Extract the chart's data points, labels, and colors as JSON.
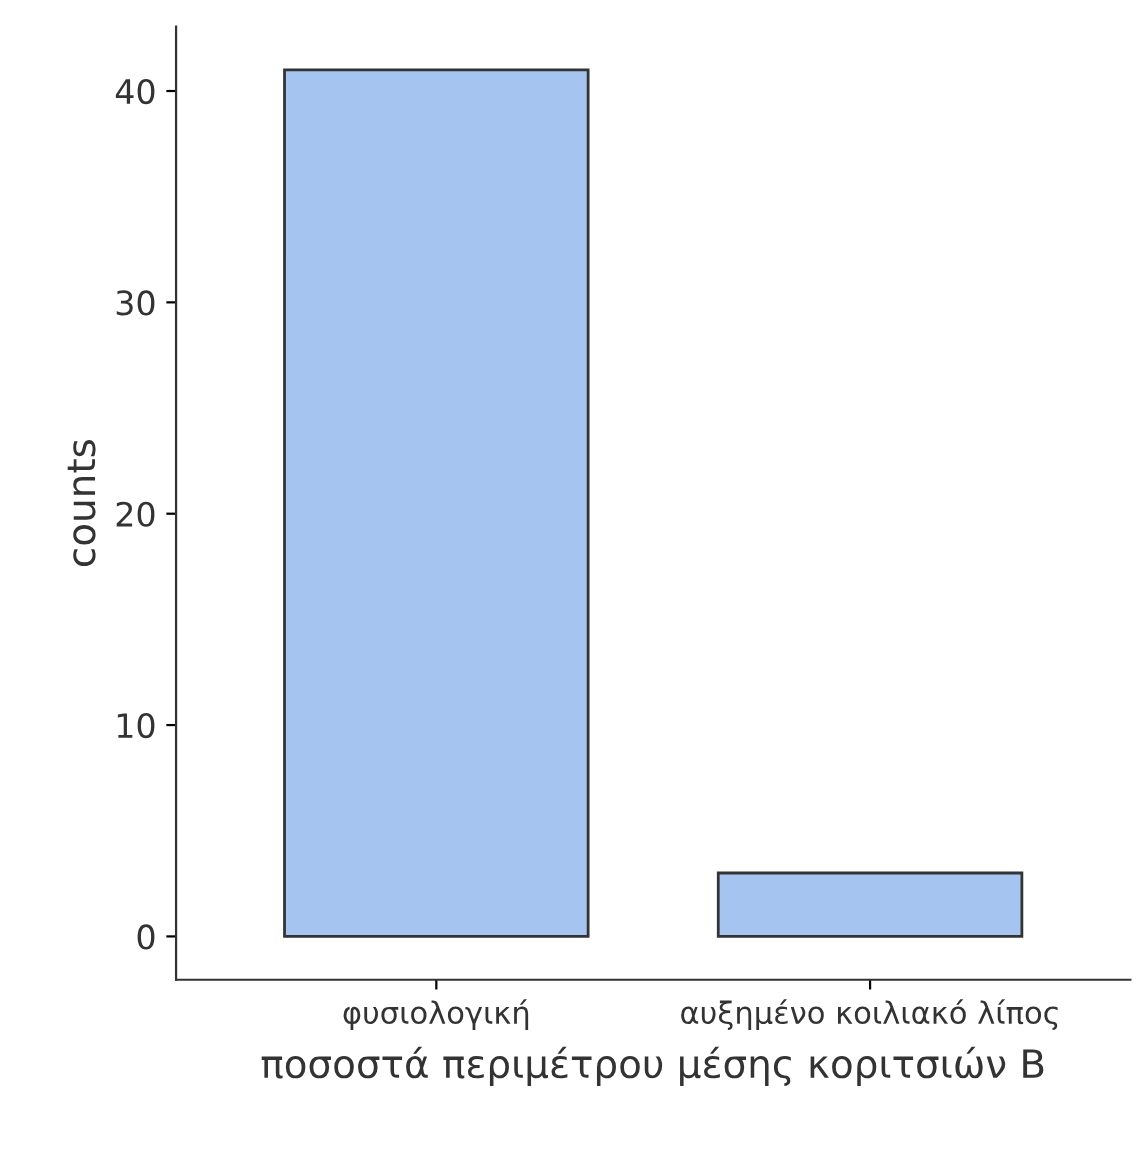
{
  "chart_data": {
    "type": "bar",
    "xlabel": "ποσοστά περιμέτρου μέσης κοριτσιών Β",
    "ylabel": "counts",
    "categories": [
      "φυσιολογική",
      "αυξημένο κοιλιακό λίπος"
    ],
    "values": [
      41,
      3
    ],
    "color": "#a6c4f0",
    "ylim": [
      -2.05,
      43.05
    ],
    "yticks": [
      0,
      10,
      20,
      30,
      40
    ]
  }
}
